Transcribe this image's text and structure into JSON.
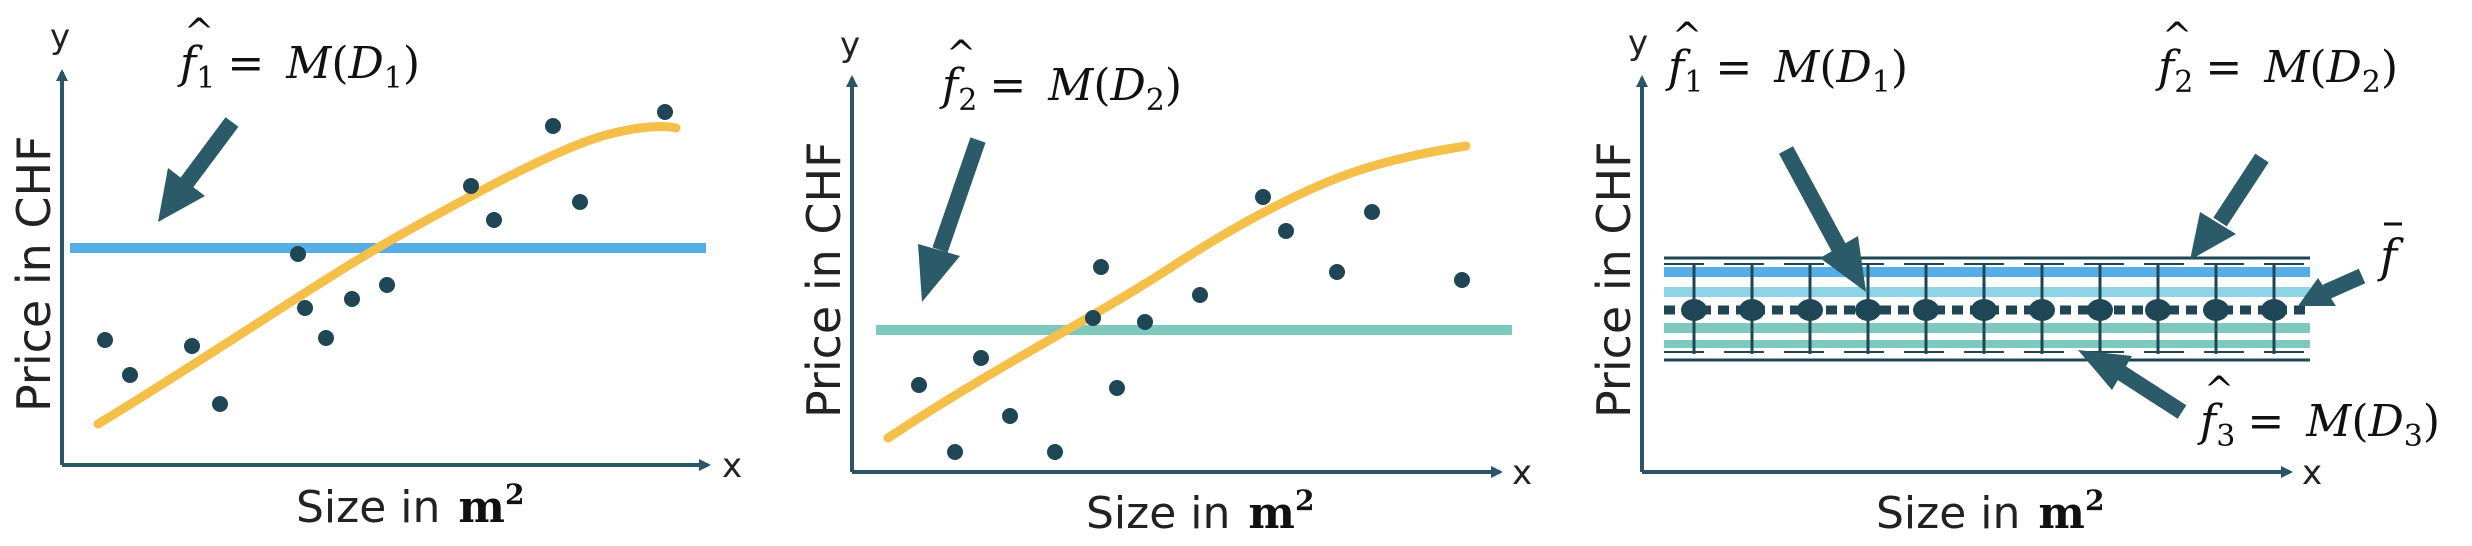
{
  "colors": {
    "axis": "#2b5566",
    "points": "#1f4654",
    "arrow": "#2b5a68",
    "curve": "#f4c04a",
    "line_blue": "#56aee6",
    "line_teal": "#7fc8be",
    "line_cyan": "#8fd4e6",
    "grid": "#1f4654"
  },
  "panels": [
    {
      "ylabel": "Price in CHF",
      "xlabel": "Size in",
      "xunit": "m",
      "xunit_exp": "2",
      "y_axis_letter": "y",
      "x_axis_letter": "x",
      "annotation": {
        "fn": "f",
        "sub": "1",
        "op": "= ",
        "M": "M",
        "D": "D",
        "dsub": "1"
      },
      "flat_line": "blue",
      "points_count_note": ""
    },
    {
      "ylabel": "Price in CHF",
      "xlabel": "Size in",
      "xunit": "m",
      "xunit_exp": "2",
      "y_axis_letter": "y",
      "x_axis_letter": "x",
      "annotation": {
        "fn": "f",
        "sub": "2",
        "op": "= ",
        "M": "M",
        "D": "D",
        "dsub": "2"
      },
      "flat_line": "teal"
    },
    {
      "ylabel": "Price in CHF",
      "xlabel": "Size in",
      "xunit": "m",
      "xunit_exp": "2",
      "y_axis_letter": "y",
      "x_axis_letter": "x",
      "annotations": [
        {
          "fn": "f",
          "sub": "1",
          "op": "= ",
          "M": "M",
          "D": "D",
          "dsub": "1"
        },
        {
          "fn": "f",
          "sub": "2",
          "op": "= ",
          "M": "M",
          "D": "D",
          "dsub": "2"
        },
        {
          "fn": "f",
          "sub": "3",
          "op": "= ",
          "M": "M",
          "D": "D",
          "dsub": "3"
        }
      ],
      "mean_label": "f"
    }
  ]
}
